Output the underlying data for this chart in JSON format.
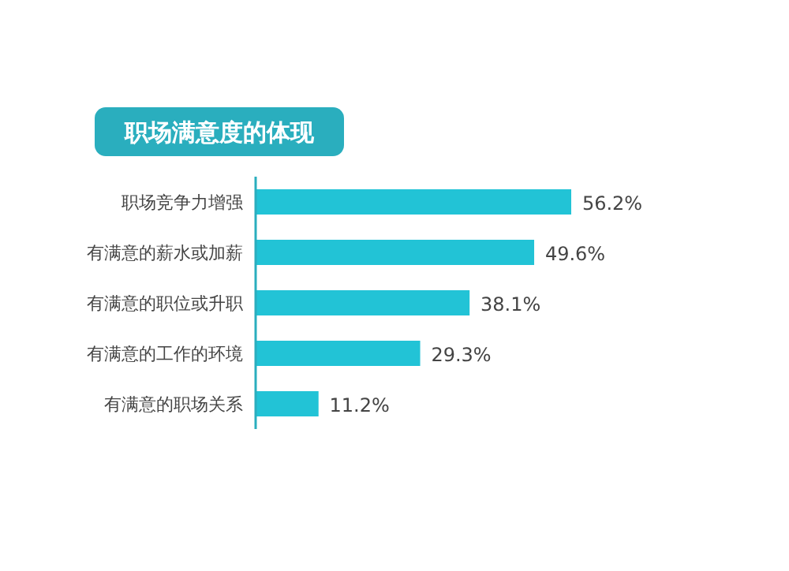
{
  "chart_data": {
    "type": "bar",
    "orientation": "horizontal",
    "title": "职场满意度的体现",
    "categories": [
      "职场竞争力增强",
      "有满意的薪水或加薪",
      "有满意的职位或升职",
      "有满意的工作的环境",
      "有满意的职场关系"
    ],
    "values": [
      56.2,
      49.6,
      38.1,
      29.3,
      11.2
    ],
    "value_labels": [
      "56.2%",
      "49.6%",
      "38.1%",
      "29.3%",
      "11.2%"
    ],
    "color": "#22c3d6"
  }
}
